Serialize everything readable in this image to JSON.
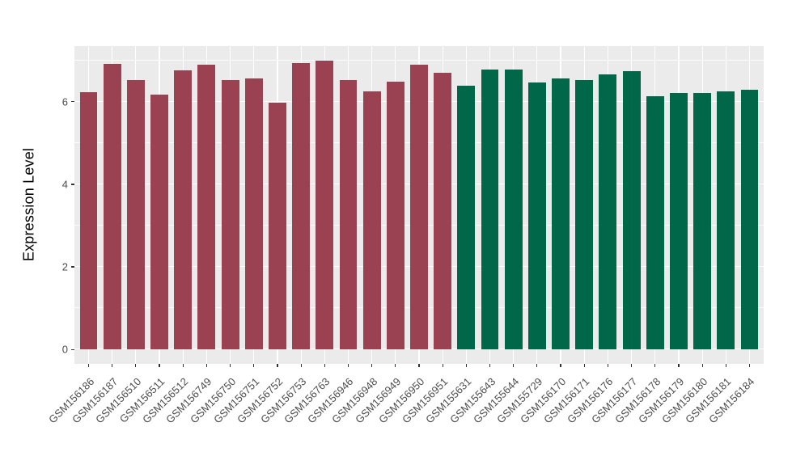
{
  "chart_data": {
    "type": "bar",
    "title": "",
    "xlabel": "",
    "ylabel": "Expression Level",
    "categories": [
      "GSM156186",
      "GSM156187",
      "GSM156510",
      "GSM156511",
      "GSM156512",
      "GSM156749",
      "GSM156750",
      "GSM156751",
      "GSM156752",
      "GSM156753",
      "GSM156763",
      "GSM156946",
      "GSM156948",
      "GSM156949",
      "GSM156950",
      "GSM156951",
      "GSM155631",
      "GSM155643",
      "GSM155644",
      "GSM155729",
      "GSM156170",
      "GSM156171",
      "GSM156176",
      "GSM156177",
      "GSM156178",
      "GSM156179",
      "GSM156180",
      "GSM156181",
      "GSM156184"
    ],
    "values": [
      6.23,
      6.91,
      6.52,
      6.18,
      6.77,
      6.9,
      6.52,
      6.56,
      5.97,
      6.93,
      7.0,
      6.52,
      6.25,
      6.49,
      6.89,
      6.71,
      6.4,
      6.78,
      6.79,
      6.46,
      6.56,
      6.52,
      6.66,
      6.75,
      6.14,
      6.22,
      6.22,
      6.25,
      6.29
    ],
    "bar_groups": [
      {
        "color": "#9A4152",
        "from": 0,
        "to": 15
      },
      {
        "color": "#006749",
        "from": 16,
        "to": 28
      }
    ],
    "ylim": [
      0,
      7
    ],
    "y_major_ticks": [
      0,
      2,
      4,
      6
    ],
    "y_minor_ticks": [
      1,
      3,
      5,
      7
    ],
    "y_tick_labels": [
      "0",
      "2",
      "4",
      "6"
    ],
    "grid": true,
    "legend": false,
    "panel_bg": "#EBEBEB",
    "grid_color": "#FFFFFF",
    "tick_color": "#333333",
    "axis_text_color": "#4D4D4D"
  }
}
